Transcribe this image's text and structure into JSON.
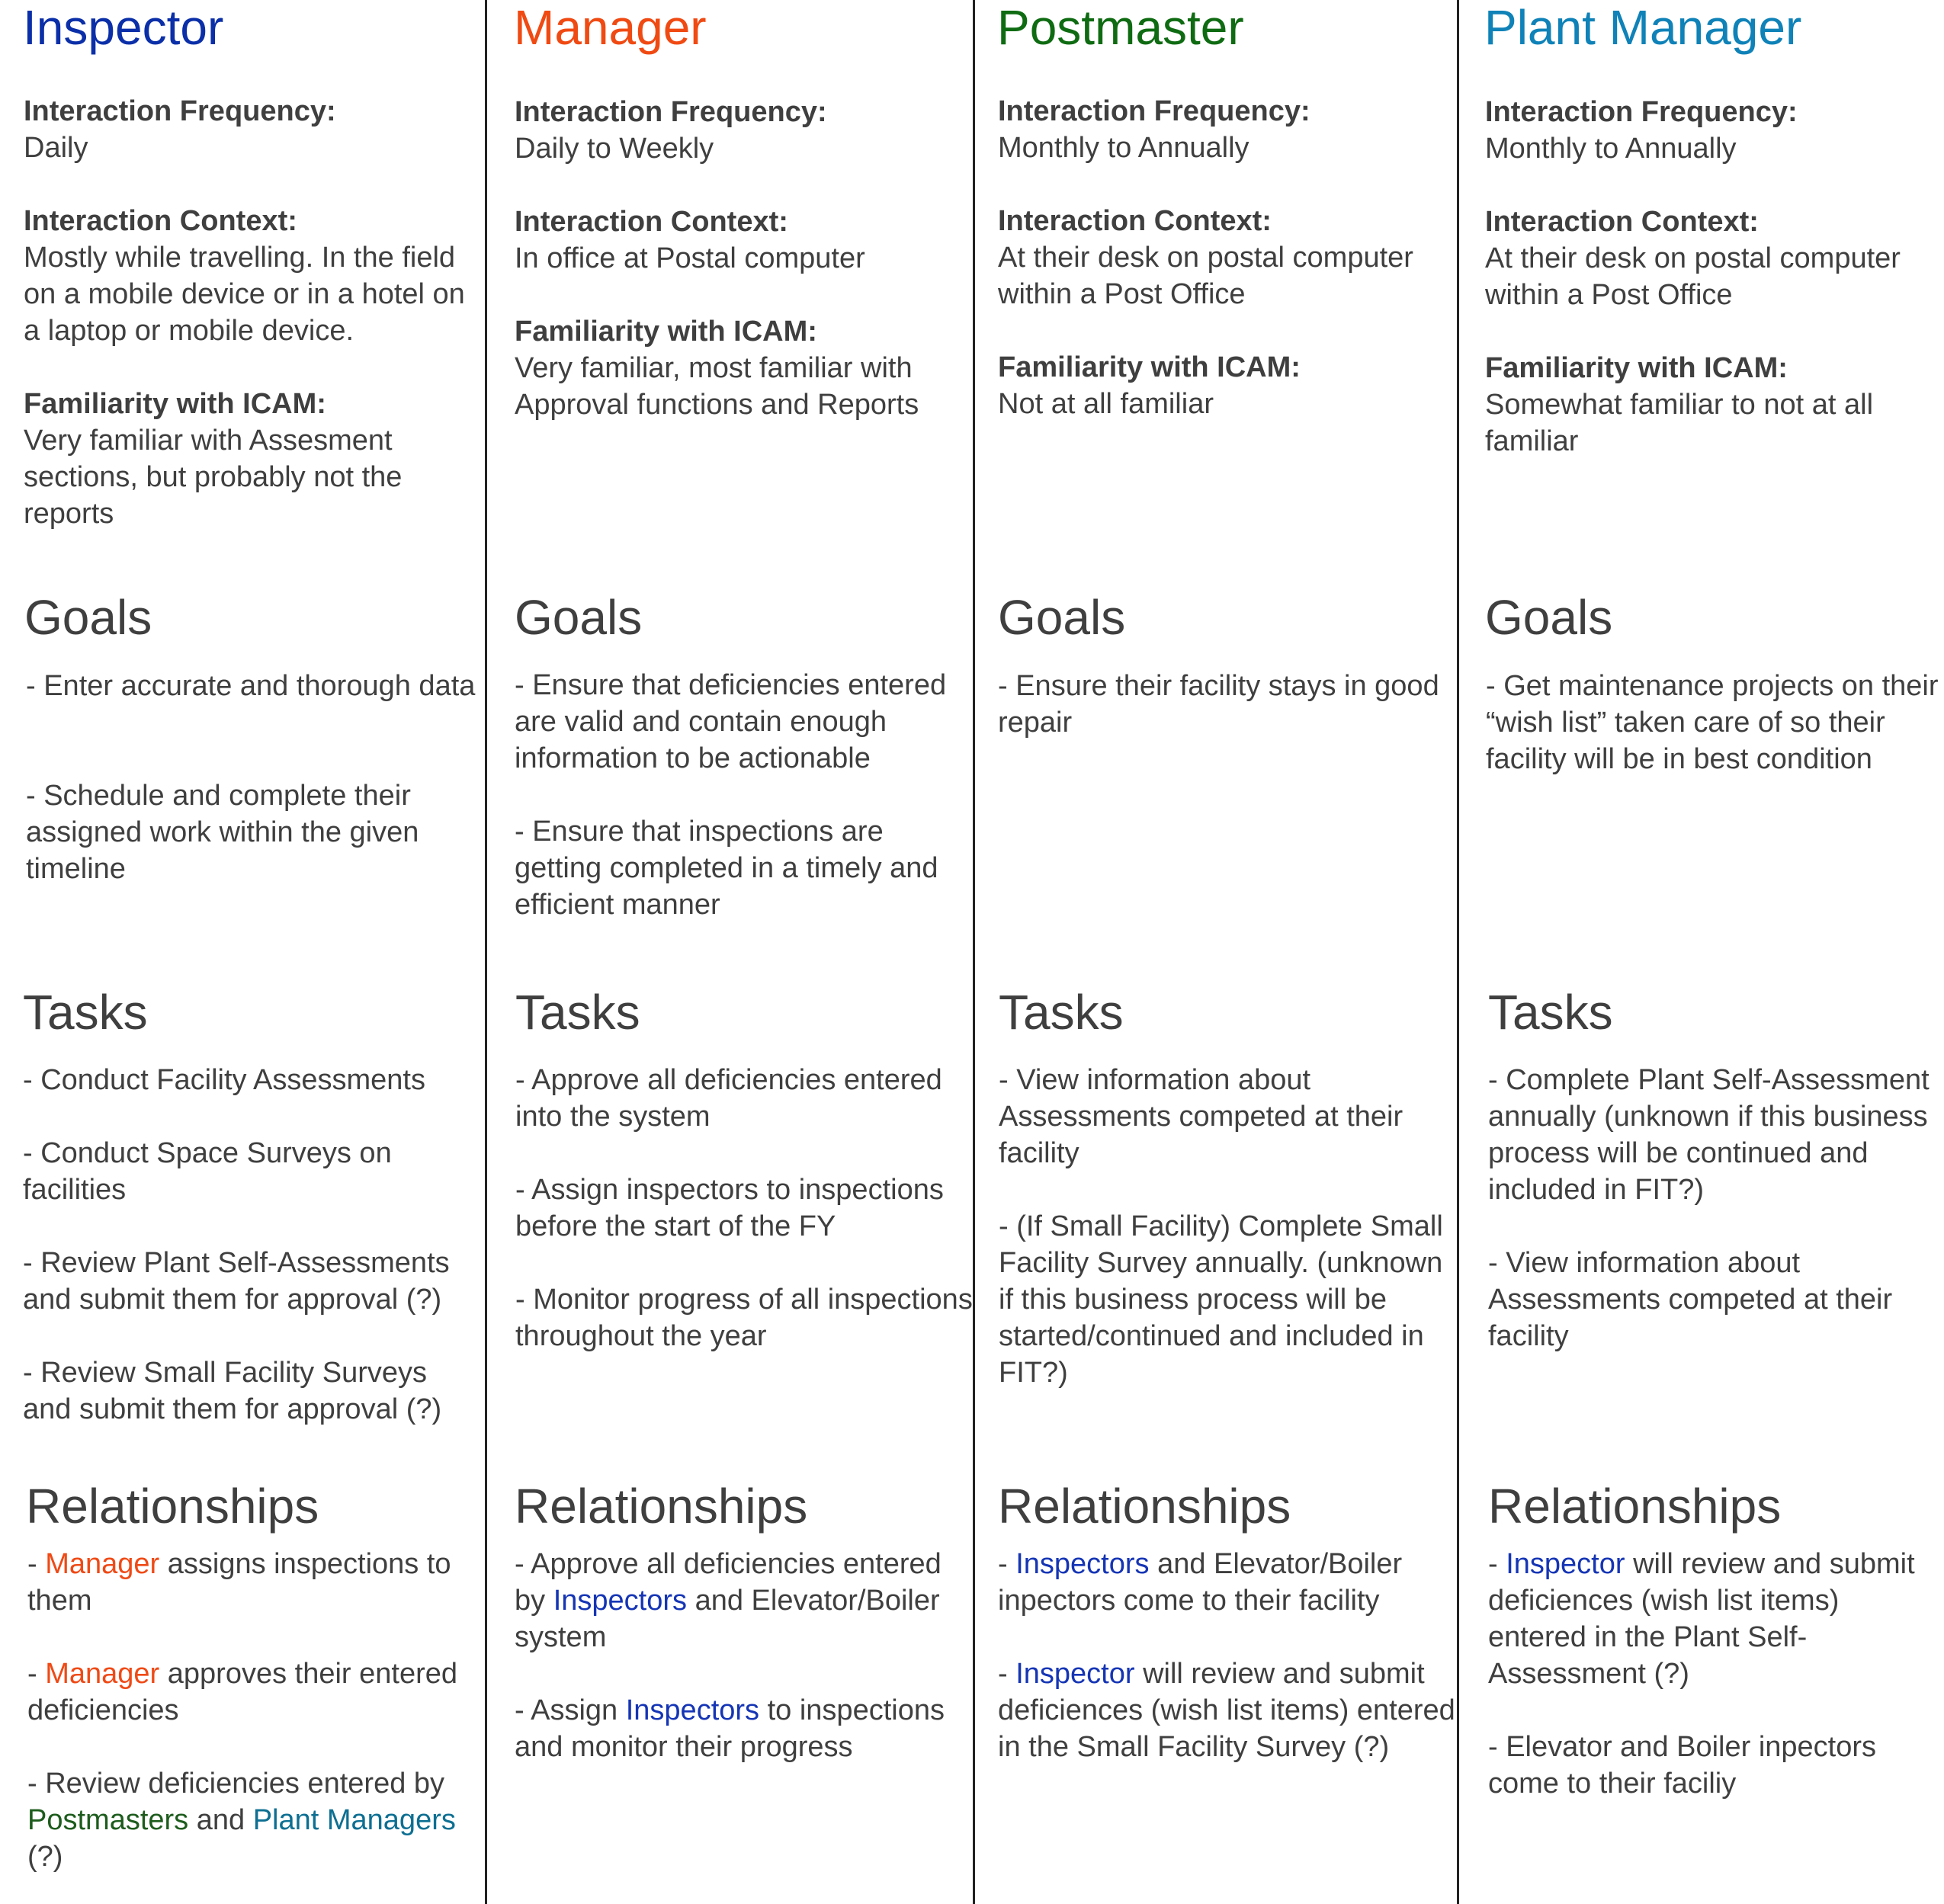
{
  "labels": {
    "frequency": "Interaction Frequency:",
    "context": "Interaction Context:",
    "familiarity": "Familiarity with ICAM:"
  },
  "sections": {
    "goals": "Goals",
    "tasks": "Tasks",
    "relationships": "Relationships"
  },
  "colors": {
    "inspector": "#0b2fa8",
    "manager": "#f04a13",
    "postmaster": "#0f6b12",
    "plant_manager": "#0f82b8",
    "body_text": "#3f3f3f",
    "divider": "#222222"
  },
  "inspector": {
    "title": "Inspector",
    "frequency": "Daily",
    "context": "Mostly while travelling. In the field on a mobile device or in a hotel on a laptop or mobile device.",
    "familiarity": "Very familiar with Assesment sections, but probably not the reports",
    "goals": [
      "- Enter accurate and thorough data",
      "- Schedule and complete their assigned work within the given timeline"
    ],
    "tasks": [
      "- Conduct Facility Assessments",
      "- Conduct Space Surveys on facilities",
      "- Review Plant Self-Assessments and submit them for approval (?)",
      "- Review Small Facility Surveys and submit them for approval (?)"
    ],
    "relationships": {
      "r1": {
        "prefix": "- ",
        "link": "Manager",
        "rest": " assigns inspections to them"
      },
      "r2": {
        "prefix": "- ",
        "link": "Manager",
        "rest": " approves their entered deficiencies"
      },
      "r3": {
        "prefix": "- Review deficiencies entered by ",
        "link1": "Postmasters",
        "mid": " and ",
        "link2": "Plant Managers",
        "end": " (?)"
      }
    }
  },
  "manager": {
    "title": "Manager",
    "frequency": "Daily to Weekly",
    "context": "In office at Postal computer",
    "familiarity": "Very familiar, most familiar with Approval functions and Reports",
    "goals": [
      "- Ensure that deficiencies entered are valid and contain enough information to be actionable",
      "- Ensure that inspections are getting completed in a timely and efficient manner"
    ],
    "tasks": [
      "- Approve all deficiencies entered into the system",
      "- Assign inspectors to inspections before the start of the FY",
      "- Monitor progress of all inspections throughout the year"
    ],
    "relationships": {
      "r1": {
        "prefix": "- Approve all deficiencies entered by ",
        "link": "Inspectors",
        "rest": " and Elevator/Boiler system"
      },
      "r2": {
        "prefix": "- Assign ",
        "link": "Inspectors",
        "rest": " to inspections and monitor their progress"
      }
    }
  },
  "postmaster": {
    "title": "Postmaster",
    "frequency": "Monthly to Annually",
    "context": "At their desk on postal computer within a Post Office",
    "familiarity": "Not at all familiar",
    "goals": [
      "-  Ensure their facility stays in good repair"
    ],
    "tasks": [
      "- View information about Assessments competed at their facility",
      "- (If Small Facility) Complete Small Facility Survey annually. (unknown if this business process will be started/continued and included in FIT?)"
    ],
    "relationships": {
      "r1": {
        "prefix": "- ",
        "link": "Inspectors",
        "rest": " and Elevator/Boiler inpectors come to their facility"
      },
      "r2": {
        "prefix": "- ",
        "link": "Inspector",
        "rest": " will review and submit deficiences (wish list items) entered in the Small Facility Survey (?)"
      }
    }
  },
  "plant_manager": {
    "title": "Plant Manager",
    "frequency": "Monthly to Annually",
    "context": "At their desk on postal computer within a Post Office",
    "familiarity": "Somewhat familiar to not at all familiar",
    "goals": [
      "-  Get maintenance projects on their “wish list” taken care of so their facility will be in best condition"
    ],
    "tasks": [
      "- Complete Plant Self-Assessment annually (unknown if this business process will be continued and included in FIT?)",
      "- View information about Assessments competed at their facility"
    ],
    "relationships": {
      "r1": {
        "prefix": "- ",
        "link": "Inspector",
        "rest": " will review and submit deficiences (wish list items) entered in the Plant Self-Assessment (?)"
      },
      "r2": {
        "text": "- Elevator and Boiler inpectors come to their faciliy"
      }
    }
  }
}
